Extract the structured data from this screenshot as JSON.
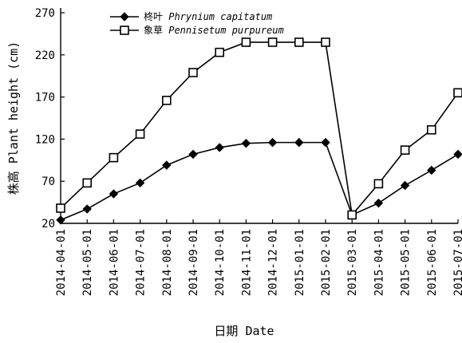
{
  "chart_data": {
    "type": "line",
    "x": [
      "2014-04-01",
      "2014-05-01",
      "2014-06-01",
      "2014-07-01",
      "2014-08-01",
      "2014-09-01",
      "2014-10-01",
      "2014-11-01",
      "2014-12-01",
      "2015-01-01",
      "2015-02-01",
      "2015-03-01",
      "2015-04-01",
      "2015-05-01",
      "2015-06-01",
      "2015-07-01"
    ],
    "series": [
      {
        "name": "柊叶 Phrynium capitatum",
        "name_cn": "柊叶",
        "name_latin": "Phrynium capitatum",
        "marker": "filled-diamond",
        "values": [
          24,
          37,
          55,
          68,
          89,
          102,
          110,
          115,
          116,
          116,
          116,
          30,
          44,
          65,
          83,
          102
        ]
      },
      {
        "name": "象草 Pennisetum purpureum",
        "name_cn": "象草",
        "name_latin": "Pennisetum purpureum",
        "marker": "open-square",
        "values": [
          38,
          68,
          98,
          126,
          166,
          199,
          223,
          235,
          235,
          235,
          235,
          30,
          67,
          107,
          131,
          175
        ]
      }
    ],
    "xlabel": "日期 Date",
    "ylabel": "株高 Plant height (cm)",
    "ylim": [
      20,
      270
    ],
    "yticks": [
      20,
      70,
      120,
      170,
      220,
      270
    ],
    "grid": false,
    "legend_position": "top-left",
    "colors": {
      "line": "#000000",
      "background": "#ffffff"
    }
  }
}
